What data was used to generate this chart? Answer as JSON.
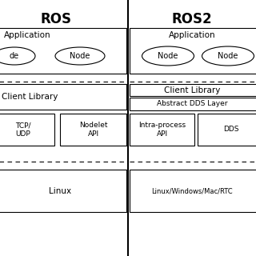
{
  "bg_color": "#ffffff",
  "title_ros": "ROS",
  "title_ros2": "ROS2",
  "title_fontsize": 12,
  "label_fontsize": 7.5,
  "small_fontsize": 6.5,
  "ros": {
    "app_label": "Application",
    "node1_label": "de",
    "node2_label": "Node",
    "client_library_label": "Client Library",
    "tcp_label": "TCP/\nUDP",
    "nodelet_label": "Nodelet\nAPI",
    "linux_label": "Linux"
  },
  "ros2": {
    "app_label": "Application",
    "node1_label": "Node",
    "node2_label": "Node",
    "client_library_label": "Client Library",
    "abstract_dds_label": "Abstract DDS Layer",
    "intraprocess_label": "Intra-process\nAPI",
    "dds_label": "DDS",
    "linux_label": "Linux/Windows/Mac/RTC"
  }
}
